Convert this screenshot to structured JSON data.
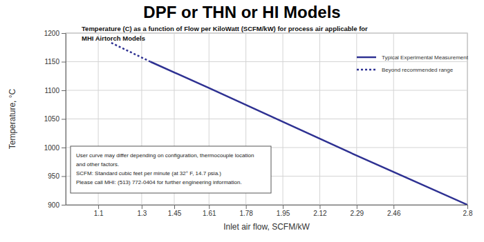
{
  "chart_data": {
    "type": "line",
    "title": "DPF or THN or HI Models",
    "subtitle": [
      "Temperature (C) as a function of Flow per KiloWatt (SCFM/kW) for process air applicable for",
      "MHI Airtorch Models"
    ],
    "x_label": "Inlet air flow, SCFM/kW",
    "y_label": "Temperature, °C",
    "annotations": [
      "User curve may differ depending on configuration, thermocouple location",
      "and other factors.",
      "SCFM: Standard cubic feet per minute  (at 32° F, 14.7 psia.)",
      "Please call MHI: (513) 772-0404 for further engineering information."
    ],
    "series": [
      {
        "name": "Typical Experimental Measurement",
        "color": "#2e3192",
        "line_style": "solid",
        "x": [
          1.34,
          1.61,
          1.95,
          2.29,
          2.8
        ],
        "values": [
          1150,
          1104,
          1045,
          986,
          900
        ]
      },
      {
        "name": "Beyond recommended range",
        "color": "#2e3192",
        "line_style": "dotted",
        "x": [
          1.16,
          1.34
        ],
        "values": [
          1183,
          1150
        ]
      }
    ],
    "xlim": [
      0.95,
      2.8
    ],
    "xticks": [
      1.1,
      1.3,
      1.45,
      1.61,
      1.78,
      1.95,
      2.12,
      2.29,
      2.46,
      2.8
    ],
    "ylim": [
      900,
      1200
    ],
    "yticks": [
      900,
      950,
      1000,
      1050,
      1100,
      1150,
      1200
    ],
    "grid": true,
    "legend": "upper right"
  }
}
